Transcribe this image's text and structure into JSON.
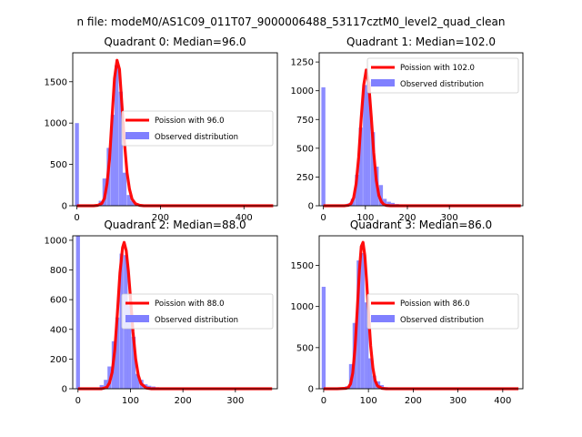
{
  "figure": {
    "suptitle": "n file: modeM0/AS1C09_011T07_9000006488_53117cztM0_level2_quad_clean"
  },
  "chart_data": [
    {
      "type": "bar",
      "title": "Quadrant 0: Median=96.0",
      "xlim": [
        -10,
        480
      ],
      "ylim": [
        0,
        1850
      ],
      "xticks": [
        0,
        200,
        400
      ],
      "yticks": [
        0,
        500,
        1000,
        1500
      ],
      "legend": {
        "placement": "center-right",
        "entries": [
          "Poission with 96.0",
          "Observed distribution"
        ]
      },
      "colors": {
        "line": "#ff0000",
        "bars": "#8080ff"
      },
      "bar_width": 9.5,
      "histogram": {
        "name": "Observed distribution",
        "x": [
          0,
          57,
          66,
          76,
          86,
          95,
          105,
          114,
          124,
          133,
          143,
          152,
          162
        ],
        "values": [
          1000,
          60,
          330,
          700,
          1100,
          1700,
          1380,
          400,
          130,
          60,
          25,
          10,
          5
        ]
      },
      "poisson": {
        "name": "Poission with 96.0",
        "x": [
          0,
          20,
          40,
          50,
          60,
          66,
          72,
          78,
          84,
          90,
          96,
          102,
          108,
          114,
          120,
          126,
          132,
          140,
          150,
          160,
          200,
          300,
          400,
          470
        ],
        "y": [
          0,
          0,
          0,
          5,
          30,
          90,
          270,
          560,
          1060,
          1540,
          1760,
          1650,
          1200,
          760,
          400,
          200,
          80,
          25,
          5,
          0,
          0,
          0,
          0,
          0
        ]
      }
    },
    {
      "type": "bar",
      "title": "Quadrant 1: Median=102.0",
      "xlim": [
        -10,
        475
      ],
      "ylim": [
        0,
        1330
      ],
      "xticks": [
        0,
        100,
        200,
        300
      ],
      "yticks": [
        0,
        250,
        500,
        750,
        1000,
        1250
      ],
      "legend": {
        "placement": "top-right",
        "entries": [
          "Poission with 102.0",
          "Observed distribution"
        ]
      },
      "colors": {
        "line": "#ff0000",
        "bars": "#8080ff"
      },
      "bar_width": 9.5,
      "histogram": {
        "name": "Observed distribution",
        "x": [
          0,
          61,
          70,
          80,
          89,
          99,
          108,
          118,
          127,
          137,
          146,
          156,
          165,
          175,
          184,
          194,
          203
        ],
        "values": [
          1030,
          20,
          60,
          270,
          680,
          1050,
          1080,
          640,
          340,
          180,
          60,
          35,
          25,
          15,
          10,
          5,
          3
        ]
      },
      "poisson": {
        "name": "Poission with 102.0",
        "x": [
          0,
          30,
          50,
          60,
          66,
          72,
          78,
          84,
          90,
          96,
          102,
          108,
          114,
          120,
          126,
          132,
          138,
          144,
          150,
          160,
          200,
          300,
          400,
          470
        ],
        "y": [
          0,
          0,
          0,
          5,
          20,
          70,
          190,
          420,
          760,
          1050,
          1180,
          1060,
          770,
          460,
          220,
          90,
          35,
          10,
          3,
          0,
          0,
          0,
          0,
          0
        ]
      }
    },
    {
      "type": "bar",
      "title": "Quadrant 2: Median=88.0",
      "xlim": [
        -10,
        380
      ],
      "ylim": [
        0,
        1030
      ],
      "xticks": [
        0,
        100,
        200,
        300
      ],
      "yticks": [
        0,
        200,
        400,
        600,
        800,
        1000
      ],
      "legend": {
        "placement": "center-right",
        "entries": [
          "Poission with 88.0",
          "Observed distribution"
        ]
      },
      "colors": {
        "line": "#ff0000",
        "bars": "#8080ff"
      },
      "bar_width": 7.5,
      "histogram": {
        "name": "Observed distribution",
        "x": [
          0,
          45,
          53,
          60,
          68,
          75,
          83,
          91,
          98,
          106,
          113,
          121,
          129,
          136,
          144,
          151,
          159,
          174,
          197
        ],
        "values": [
          1030,
          25,
          60,
          150,
          320,
          480,
          910,
          900,
          560,
          350,
          100,
          60,
          30,
          20,
          15,
          10,
          5,
          3,
          3
        ]
      },
      "poisson": {
        "name": "Poission with 88.0",
        "x": [
          0,
          30,
          45,
          55,
          60,
          65,
          70,
          75,
          80,
          85,
          88,
          92,
          96,
          100,
          105,
          110,
          115,
          120,
          130,
          140,
          200,
          300,
          370
        ],
        "y": [
          0,
          0,
          0,
          10,
          40,
          110,
          260,
          500,
          780,
          950,
          985,
          930,
          790,
          610,
          380,
          200,
          90,
          35,
          5,
          0,
          0,
          0,
          0
        ]
      }
    },
    {
      "type": "bar",
      "title": "Quadrant 3: Median=86.0",
      "xlim": [
        -10,
        445
      ],
      "ylim": [
        0,
        1860
      ],
      "xticks": [
        0,
        100,
        200,
        300,
        400
      ],
      "yticks": [
        0,
        500,
        1000,
        1500
      ],
      "legend": {
        "placement": "center-right",
        "entries": [
          "Poission with 86.0",
          "Observed distribution"
        ]
      },
      "colors": {
        "line": "#ff0000",
        "bars": "#8080ff"
      },
      "bar_width": 8.7,
      "histogram": {
        "name": "Observed distribution",
        "x": [
          0,
          52,
          61,
          69,
          78,
          87,
          96,
          104,
          113,
          122,
          130,
          139,
          148
        ],
        "values": [
          1240,
          30,
          300,
          800,
          1560,
          1650,
          1050,
          370,
          160,
          90,
          45,
          20,
          10
        ]
      },
      "poisson": {
        "name": "Poission with 86.0",
        "x": [
          0,
          30,
          50,
          55,
          60,
          65,
          70,
          75,
          80,
          84,
          88,
          92,
          96,
          100,
          105,
          110,
          115,
          120,
          130,
          140,
          200,
          300,
          435
        ],
        "y": [
          0,
          0,
          5,
          15,
          60,
          190,
          490,
          950,
          1450,
          1730,
          1780,
          1620,
          1300,
          930,
          520,
          250,
          100,
          35,
          5,
          0,
          0,
          0,
          0
        ]
      }
    }
  ]
}
